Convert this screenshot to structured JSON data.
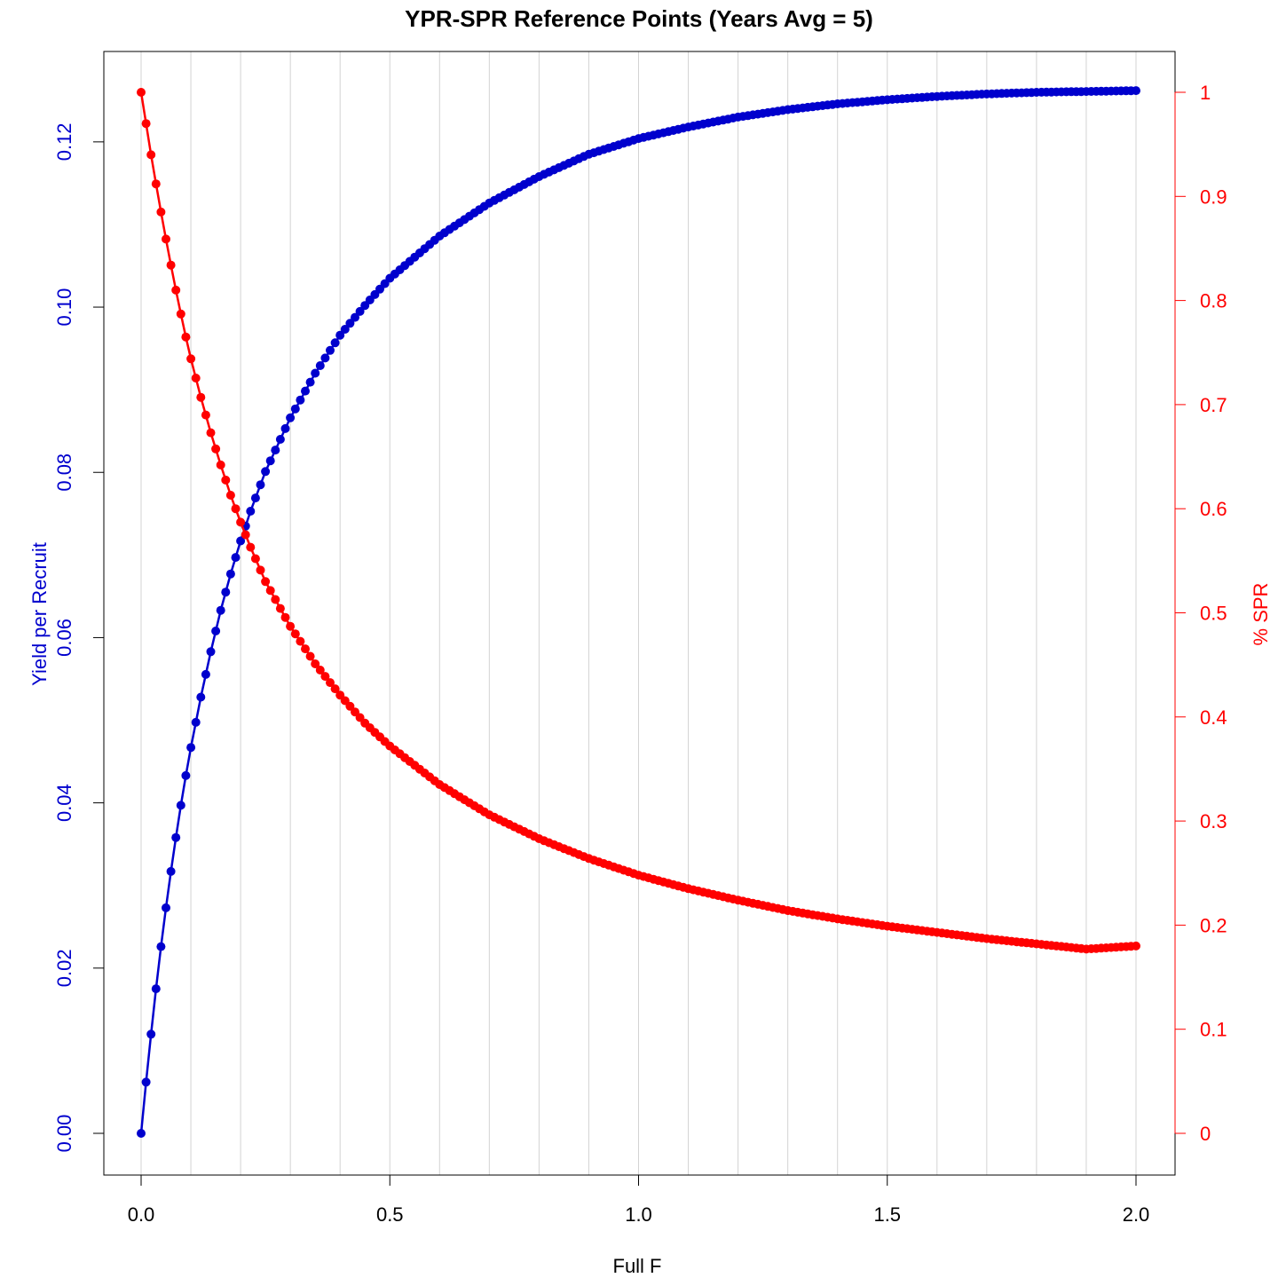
{
  "chart_data": {
    "type": "line",
    "title": "YPR-SPR Reference Points (Years Avg = 5)",
    "xlabel": "Full F",
    "ylabel_left": "Yield per Recruit",
    "ylabel_right": "% SPR",
    "xlim": [
      0,
      2
    ],
    "x_ticks": [
      "0.0",
      "0.5",
      "1.0",
      "1.5",
      "2.0"
    ],
    "ylim_left": [
      0,
      0.126
    ],
    "y_ticks_left": [
      "0.00",
      "0.02",
      "0.04",
      "0.06",
      "0.08",
      "0.10",
      "0.12"
    ],
    "ylim_right": [
      0,
      1
    ],
    "y_ticks_right": [
      "0",
      "0.1",
      "0.2",
      "0.3",
      "0.4",
      "0.5",
      "0.6",
      "0.7",
      "0.8",
      "0.9",
      "1"
    ],
    "grid": "vertical",
    "colors": {
      "ypr": "#0000cd",
      "spr": "#ff0000",
      "grid": "#d3d3d3"
    },
    "series": [
      {
        "axis": "left",
        "color": "#0000cd",
        "x": [
          0.0,
          0.01,
          0.02,
          0.03,
          0.04,
          0.05,
          0.06,
          0.07,
          0.08,
          0.09,
          0.1,
          0.12,
          0.14,
          0.16,
          0.18,
          0.2,
          0.22,
          0.25,
          0.3,
          0.35,
          0.4,
          0.45,
          0.5,
          0.6,
          0.7,
          0.8,
          0.9,
          1.0,
          1.1,
          1.2,
          1.3,
          1.4,
          1.5,
          1.6,
          1.7,
          1.8,
          1.9,
          2.0
        ],
        "values": [
          0.0,
          0.0062,
          0.012,
          0.0175,
          0.0226,
          0.0273,
          0.0317,
          0.0358,
          0.0397,
          0.0433,
          0.0467,
          0.0528,
          0.0583,
          0.0633,
          0.0677,
          0.0717,
          0.0753,
          0.0801,
          0.0866,
          0.092,
          0.0966,
          0.1002,
          0.1035,
          0.1086,
          0.1126,
          0.1158,
          0.1185,
          0.1204,
          0.1218,
          0.123,
          0.1239,
          0.1246,
          0.1251,
          0.1255,
          0.1258,
          0.126,
          0.1261,
          0.1262
        ]
      },
      {
        "axis": "right",
        "color": "#ff0000",
        "x": [
          0.0,
          0.01,
          0.02,
          0.03,
          0.04,
          0.05,
          0.06,
          0.07,
          0.08,
          0.09,
          0.1,
          0.12,
          0.14,
          0.16,
          0.18,
          0.2,
          0.22,
          0.25,
          0.3,
          0.35,
          0.4,
          0.45,
          0.5,
          0.6,
          0.7,
          0.8,
          0.9,
          1.0,
          1.1,
          1.2,
          1.3,
          1.4,
          1.5,
          1.6,
          1.7,
          1.8,
          1.9,
          2.0
        ],
        "values": [
          1.0,
          0.97,
          0.94,
          0.912,
          0.885,
          0.859,
          0.834,
          0.81,
          0.787,
          0.765,
          0.744,
          0.707,
          0.673,
          0.642,
          0.613,
          0.587,
          0.563,
          0.53,
          0.487,
          0.451,
          0.421,
          0.394,
          0.372,
          0.335,
          0.306,
          0.283,
          0.264,
          0.248,
          0.235,
          0.224,
          0.214,
          0.206,
          0.199,
          0.193,
          0.187,
          0.182,
          0.177,
          0.18
        ]
      }
    ]
  }
}
